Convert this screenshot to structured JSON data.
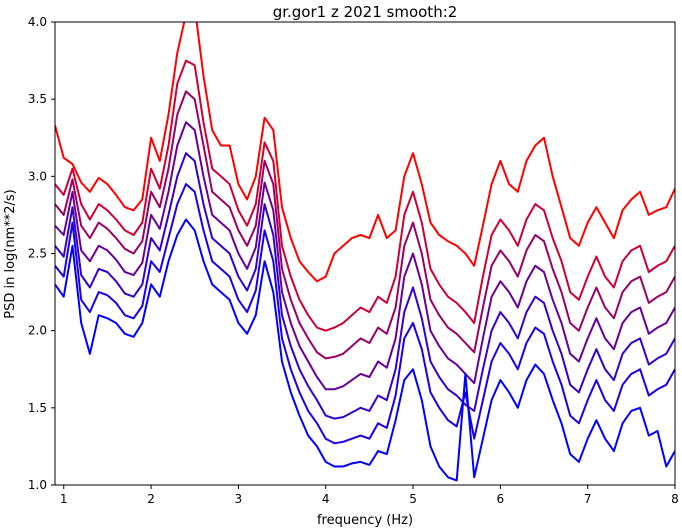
{
  "chart_data": {
    "type": "line",
    "title": "gr.gor1 z 2021 smooth:2",
    "xlabel": "frequency (Hz)",
    "ylabel": "PSD in log(nm**2/s)",
    "xlim": [
      0.9,
      8.0
    ],
    "ylim": [
      1.0,
      4.0
    ],
    "xticks": [
      1,
      2,
      3,
      4,
      5,
      6,
      7,
      8
    ],
    "yticks": [
      1.0,
      1.5,
      2.0,
      2.5,
      3.0,
      3.5,
      4.0
    ],
    "xtick_labels": [
      "1",
      "2",
      "3",
      "4",
      "5",
      "6",
      "7",
      "8"
    ],
    "ytick_labels": [
      "1.0",
      "1.5",
      "2.0",
      "2.5",
      "3.0",
      "3.5",
      "4.0"
    ],
    "grid": false,
    "legend": "none",
    "series": [
      {
        "color": "#ff0000",
        "x": [
          0.9,
          1.0,
          1.1,
          1.2,
          1.3,
          1.4,
          1.5,
          1.6,
          1.7,
          1.8,
          1.9,
          2.0,
          2.1,
          2.2,
          2.3,
          2.4,
          2.5,
          2.6,
          2.7,
          2.8,
          2.9,
          3.0,
          3.1,
          3.2,
          3.3,
          3.4,
          3.5,
          3.6,
          3.7,
          3.8,
          3.9,
          4.0,
          4.1,
          4.2,
          4.3,
          4.4,
          4.5,
          4.6,
          4.7,
          4.8,
          4.9,
          5.0,
          5.1,
          5.2,
          5.3,
          5.4,
          5.5,
          5.6,
          5.7,
          5.8,
          5.9,
          6.0,
          6.1,
          6.2,
          6.3,
          6.4,
          6.5,
          6.6,
          6.7,
          6.8,
          6.9,
          7.0,
          7.1,
          7.2,
          7.3,
          7.4,
          7.5,
          7.6,
          7.7,
          7.8,
          7.9,
          8.0
        ],
        "y": [
          3.33,
          3.12,
          3.08,
          2.96,
          2.9,
          2.99,
          2.95,
          2.88,
          2.8,
          2.78,
          2.85,
          3.25,
          3.1,
          3.4,
          3.8,
          4.05,
          4.1,
          3.65,
          3.3,
          3.2,
          3.2,
          2.95,
          2.85,
          3.0,
          3.38,
          3.3,
          2.8,
          2.6,
          2.45,
          2.38,
          2.32,
          2.35,
          2.5,
          2.55,
          2.6,
          2.62,
          2.6,
          2.75,
          2.6,
          2.65,
          3.0,
          3.15,
          2.95,
          2.7,
          2.62,
          2.58,
          2.55,
          2.5,
          2.42,
          2.68,
          2.95,
          3.1,
          2.95,
          2.9,
          3.1,
          3.2,
          3.25,
          3.0,
          2.8,
          2.6,
          2.55,
          2.7,
          2.8,
          2.7,
          2.6,
          2.78,
          2.85,
          2.9,
          2.75,
          2.78,
          2.8,
          2.92
        ]
      },
      {
        "color": "#cc0033",
        "x": [
          0.9,
          1.0,
          1.1,
          1.2,
          1.3,
          1.4,
          1.5,
          1.6,
          1.7,
          1.8,
          1.9,
          2.0,
          2.1,
          2.2,
          2.3,
          2.4,
          2.5,
          2.6,
          2.7,
          2.8,
          2.9,
          3.0,
          3.1,
          3.2,
          3.3,
          3.4,
          3.5,
          3.6,
          3.7,
          3.8,
          3.9,
          4.0,
          4.1,
          4.2,
          4.3,
          4.4,
          4.5,
          4.6,
          4.7,
          4.8,
          4.9,
          5.0,
          5.1,
          5.2,
          5.3,
          5.4,
          5.5,
          5.6,
          5.7,
          5.8,
          5.9,
          6.0,
          6.1,
          6.2,
          6.3,
          6.4,
          6.5,
          6.6,
          6.7,
          6.8,
          6.9,
          7.0,
          7.1,
          7.2,
          7.3,
          7.4,
          7.5,
          7.6,
          7.7,
          7.8,
          7.9,
          8.0
        ],
        "y": [
          2.95,
          2.88,
          3.05,
          2.82,
          2.72,
          2.82,
          2.78,
          2.72,
          2.65,
          2.62,
          2.7,
          3.05,
          2.92,
          3.2,
          3.6,
          3.75,
          3.72,
          3.35,
          3.05,
          3.0,
          2.95,
          2.78,
          2.68,
          2.82,
          3.22,
          3.1,
          2.55,
          2.35,
          2.2,
          2.1,
          2.02,
          2.0,
          2.02,
          2.05,
          2.1,
          2.15,
          2.12,
          2.22,
          2.18,
          2.35,
          2.75,
          2.9,
          2.7,
          2.4,
          2.3,
          2.22,
          2.18,
          2.12,
          2.05,
          2.35,
          2.62,
          2.72,
          2.65,
          2.55,
          2.72,
          2.82,
          2.78,
          2.6,
          2.45,
          2.25,
          2.2,
          2.35,
          2.48,
          2.35,
          2.28,
          2.45,
          2.52,
          2.55,
          2.38,
          2.42,
          2.45,
          2.55
        ]
      },
      {
        "color": "#990066",
        "x": [
          0.9,
          1.0,
          1.1,
          1.2,
          1.3,
          1.4,
          1.5,
          1.6,
          1.7,
          1.8,
          1.9,
          2.0,
          2.1,
          2.2,
          2.3,
          2.4,
          2.5,
          2.6,
          2.7,
          2.8,
          2.9,
          3.0,
          3.1,
          3.2,
          3.3,
          3.4,
          3.5,
          3.6,
          3.7,
          3.8,
          3.9,
          4.0,
          4.1,
          4.2,
          4.3,
          4.4,
          4.5,
          4.6,
          4.7,
          4.8,
          4.9,
          5.0,
          5.1,
          5.2,
          5.3,
          5.4,
          5.5,
          5.6,
          5.7,
          5.8,
          5.9,
          6.0,
          6.1,
          6.2,
          6.3,
          6.4,
          6.5,
          6.6,
          6.7,
          6.8,
          6.9,
          7.0,
          7.1,
          7.2,
          7.3,
          7.4,
          7.5,
          7.6,
          7.7,
          7.8,
          7.9,
          8.0
        ],
        "y": [
          2.82,
          2.75,
          2.98,
          2.68,
          2.6,
          2.7,
          2.66,
          2.6,
          2.53,
          2.5,
          2.58,
          2.9,
          2.8,
          3.05,
          3.4,
          3.55,
          3.5,
          3.2,
          2.9,
          2.85,
          2.8,
          2.65,
          2.55,
          2.68,
          3.1,
          2.95,
          2.4,
          2.2,
          2.05,
          1.95,
          1.86,
          1.82,
          1.83,
          1.85,
          1.9,
          1.95,
          1.92,
          2.02,
          1.98,
          2.15,
          2.55,
          2.7,
          2.5,
          2.2,
          2.1,
          2.02,
          1.98,
          1.92,
          1.86,
          2.15,
          2.42,
          2.52,
          2.45,
          2.35,
          2.52,
          2.62,
          2.58,
          2.4,
          2.25,
          2.05,
          2.0,
          2.15,
          2.28,
          2.15,
          2.08,
          2.25,
          2.32,
          2.35,
          2.18,
          2.22,
          2.25,
          2.35
        ]
      },
      {
        "color": "#660099",
        "x": [
          0.9,
          1.0,
          1.1,
          1.2,
          1.3,
          1.4,
          1.5,
          1.6,
          1.7,
          1.8,
          1.9,
          2.0,
          2.1,
          2.2,
          2.3,
          2.4,
          2.5,
          2.6,
          2.7,
          2.8,
          2.9,
          3.0,
          3.1,
          3.2,
          3.3,
          3.4,
          3.5,
          3.6,
          3.7,
          3.8,
          3.9,
          4.0,
          4.1,
          4.2,
          4.3,
          4.4,
          4.5,
          4.6,
          4.7,
          4.8,
          4.9,
          5.0,
          5.1,
          5.2,
          5.3,
          5.4,
          5.5,
          5.6,
          5.7,
          5.8,
          5.9,
          6.0,
          6.1,
          6.2,
          6.3,
          6.4,
          6.5,
          6.6,
          6.7,
          6.8,
          6.9,
          7.0,
          7.1,
          7.2,
          7.3,
          7.4,
          7.5,
          7.6,
          7.7,
          7.8,
          7.9,
          8.0
        ],
        "y": [
          2.68,
          2.62,
          2.9,
          2.52,
          2.45,
          2.55,
          2.52,
          2.46,
          2.38,
          2.36,
          2.44,
          2.75,
          2.66,
          2.9,
          3.2,
          3.35,
          3.3,
          3.0,
          2.75,
          2.7,
          2.65,
          2.5,
          2.4,
          2.54,
          2.96,
          2.78,
          2.25,
          2.05,
          1.9,
          1.8,
          1.7,
          1.62,
          1.62,
          1.64,
          1.68,
          1.72,
          1.7,
          1.8,
          1.76,
          1.95,
          2.35,
          2.5,
          2.3,
          2.0,
          1.9,
          1.82,
          1.78,
          1.72,
          1.66,
          1.95,
          2.22,
          2.32,
          2.25,
          2.15,
          2.32,
          2.42,
          2.38,
          2.2,
          2.05,
          1.85,
          1.8,
          1.95,
          2.08,
          1.95,
          1.88,
          2.05,
          2.12,
          2.15,
          1.98,
          2.02,
          2.05,
          2.15
        ]
      },
      {
        "color": "#3300cc",
        "x": [
          0.9,
          1.0,
          1.1,
          1.2,
          1.3,
          1.4,
          1.5,
          1.6,
          1.7,
          1.8,
          1.9,
          2.0,
          2.1,
          2.2,
          2.3,
          2.4,
          2.5,
          2.6,
          2.7,
          2.8,
          2.9,
          3.0,
          3.1,
          3.2,
          3.3,
          3.4,
          3.5,
          3.6,
          3.7,
          3.8,
          3.9,
          4.0,
          4.1,
          4.2,
          4.3,
          4.4,
          4.5,
          4.6,
          4.7,
          4.8,
          4.9,
          5.0,
          5.1,
          5.2,
          5.3,
          5.4,
          5.5,
          5.6,
          5.7,
          5.8,
          5.9,
          6.0,
          6.1,
          6.2,
          6.3,
          6.4,
          6.5,
          6.6,
          6.7,
          6.8,
          6.9,
          7.0,
          7.1,
          7.2,
          7.3,
          7.4,
          7.5,
          7.6,
          7.7,
          7.8,
          7.9,
          8.0
        ],
        "y": [
          2.55,
          2.48,
          2.8,
          2.36,
          2.28,
          2.4,
          2.38,
          2.32,
          2.24,
          2.22,
          2.3,
          2.6,
          2.52,
          2.75,
          3.0,
          3.15,
          3.1,
          2.82,
          2.6,
          2.55,
          2.5,
          2.35,
          2.26,
          2.4,
          2.82,
          2.62,
          2.1,
          1.9,
          1.75,
          1.64,
          1.55,
          1.45,
          1.43,
          1.44,
          1.47,
          1.5,
          1.48,
          1.58,
          1.55,
          1.75,
          2.12,
          2.28,
          2.08,
          1.8,
          1.7,
          1.62,
          1.58,
          1.52,
          1.48,
          1.75,
          2.0,
          2.12,
          2.05,
          1.95,
          2.12,
          2.22,
          2.18,
          2.0,
          1.85,
          1.65,
          1.6,
          1.75,
          1.88,
          1.75,
          1.68,
          1.85,
          1.92,
          1.95,
          1.78,
          1.82,
          1.85,
          1.95
        ]
      },
      {
        "color": "#1a00e6",
        "x": [
          0.9,
          1.0,
          1.1,
          1.2,
          1.3,
          1.4,
          1.5,
          1.6,
          1.7,
          1.8,
          1.9,
          2.0,
          2.1,
          2.2,
          2.3,
          2.4,
          2.5,
          2.6,
          2.7,
          2.8,
          2.9,
          3.0,
          3.1,
          3.2,
          3.3,
          3.4,
          3.5,
          3.6,
          3.7,
          3.8,
          3.9,
          4.0,
          4.1,
          4.2,
          4.3,
          4.4,
          4.5,
          4.6,
          4.7,
          4.8,
          4.9,
          5.0,
          5.1,
          5.2,
          5.3,
          5.4,
          5.5,
          5.6,
          5.7,
          5.8,
          5.9,
          6.0,
          6.1,
          6.2,
          6.3,
          6.4,
          6.5,
          6.6,
          6.7,
          6.8,
          6.9,
          7.0,
          7.1,
          7.2,
          7.3,
          7.4,
          7.5,
          7.6,
          7.7,
          7.8,
          7.9,
          8.0
        ],
        "y": [
          2.42,
          2.35,
          2.7,
          2.2,
          2.12,
          2.25,
          2.23,
          2.18,
          2.1,
          2.08,
          2.16,
          2.45,
          2.38,
          2.6,
          2.82,
          2.95,
          2.9,
          2.65,
          2.45,
          2.4,
          2.35,
          2.2,
          2.12,
          2.26,
          2.65,
          2.45,
          1.95,
          1.75,
          1.6,
          1.48,
          1.4,
          1.3,
          1.27,
          1.28,
          1.3,
          1.32,
          1.3,
          1.4,
          1.37,
          1.58,
          1.95,
          2.05,
          1.88,
          1.6,
          1.5,
          1.42,
          1.38,
          1.6,
          1.3,
          1.55,
          1.8,
          1.92,
          1.85,
          1.75,
          1.92,
          2.02,
          1.98,
          1.8,
          1.65,
          1.45,
          1.4,
          1.55,
          1.68,
          1.55,
          1.48,
          1.65,
          1.72,
          1.75,
          1.58,
          1.62,
          1.65,
          1.75
        ]
      },
      {
        "color": "#0000ff",
        "x": [
          0.9,
          1.0,
          1.1,
          1.2,
          1.3,
          1.4,
          1.5,
          1.6,
          1.7,
          1.8,
          1.9,
          2.0,
          2.1,
          2.2,
          2.3,
          2.4,
          2.5,
          2.6,
          2.7,
          2.8,
          2.9,
          3.0,
          3.1,
          3.2,
          3.3,
          3.4,
          3.5,
          3.6,
          3.7,
          3.8,
          3.9,
          4.0,
          4.1,
          4.2,
          4.3,
          4.4,
          4.5,
          4.6,
          4.7,
          4.8,
          4.9,
          5.0,
          5.1,
          5.2,
          5.3,
          5.4,
          5.5,
          5.6,
          5.7,
          5.8,
          5.9,
          6.0,
          6.1,
          6.2,
          6.3,
          6.4,
          6.5,
          6.6,
          6.7,
          6.8,
          6.9,
          7.0,
          7.1,
          7.2,
          7.3,
          7.4,
          7.5,
          7.6,
          7.7,
          7.8,
          7.9,
          8.0
        ],
        "y": [
          2.3,
          2.22,
          2.55,
          2.05,
          1.85,
          2.1,
          2.08,
          2.05,
          1.98,
          1.96,
          2.05,
          2.3,
          2.22,
          2.45,
          2.62,
          2.72,
          2.65,
          2.45,
          2.3,
          2.25,
          2.2,
          2.05,
          1.98,
          2.1,
          2.45,
          2.25,
          1.8,
          1.6,
          1.45,
          1.32,
          1.25,
          1.15,
          1.12,
          1.12,
          1.14,
          1.15,
          1.13,
          1.22,
          1.2,
          1.42,
          1.68,
          1.75,
          1.55,
          1.25,
          1.12,
          1.05,
          1.03,
          1.72,
          1.05,
          1.3,
          1.55,
          1.68,
          1.6,
          1.5,
          1.68,
          1.78,
          1.72,
          1.55,
          1.4,
          1.2,
          1.15,
          1.3,
          1.42,
          1.3,
          1.22,
          1.4,
          1.48,
          1.5,
          1.32,
          1.35,
          1.12,
          1.22
        ]
      }
    ]
  }
}
